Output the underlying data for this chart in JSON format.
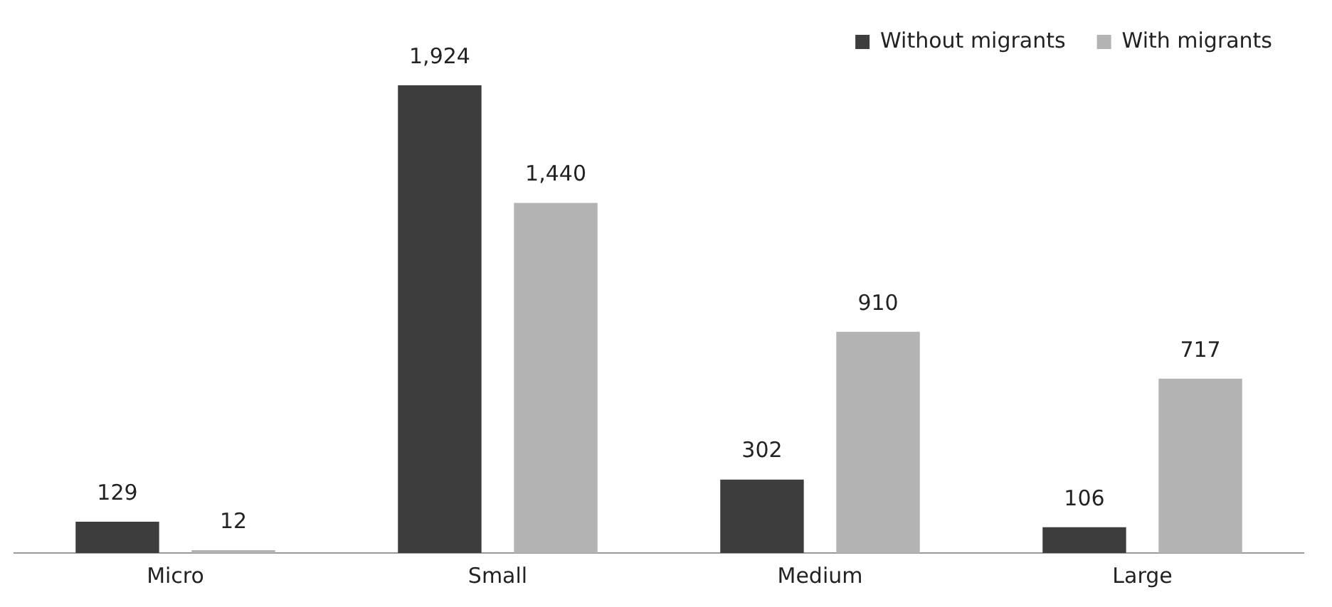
{
  "chart_data": {
    "type": "bar",
    "categories": [
      "Micro",
      "Small",
      "Medium",
      "Large"
    ],
    "series": [
      {
        "name": "Without migrants",
        "color": "#3d3d3d",
        "values": [
          129,
          1924,
          302,
          106
        ],
        "value_labels": [
          "129",
          "1,924",
          "302",
          "106"
        ]
      },
      {
        "name": "With migrants",
        "color": "#b3b3b3",
        "values": [
          12,
          1440,
          910,
          717
        ],
        "value_labels": [
          "12",
          "1,440",
          "910",
          "717"
        ]
      }
    ],
    "legend": "top right",
    "grid": false
  }
}
